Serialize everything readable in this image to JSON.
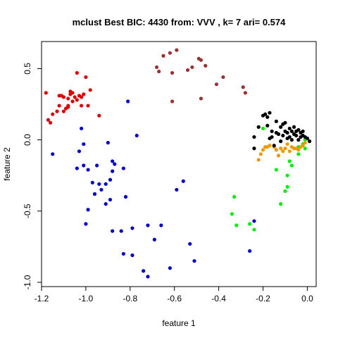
{
  "chart_data": {
    "type": "scatter",
    "title": "mclust Best BIC: 4430 from: VVV , k= 7 ari= 0.574",
    "xlabel": "feature 1",
    "ylabel": "feature 2",
    "xlim": [
      -1.2,
      0.04
    ],
    "ylim": [
      -1.03,
      0.69
    ],
    "xticks": [
      -1.2,
      -1.0,
      -0.8,
      -0.6,
      -0.4,
      -0.2,
      0.0
    ],
    "xtick_labels": [
      "-1.2",
      "-1.0",
      "-0.8",
      "-0.6",
      "-0.4",
      "-0.2",
      "0.0"
    ],
    "yticks": [
      -1.0,
      -0.5,
      0.0,
      0.5
    ],
    "ytick_labels": [
      "-1.0",
      "-0.5",
      "0.0",
      "0.5"
    ],
    "grid": false,
    "series": [
      {
        "color": "#dd0000",
        "points": [
          [
            -1.18,
            0.33
          ],
          [
            -1.17,
            0.14
          ],
          [
            -1.16,
            0.12
          ],
          [
            -1.15,
            0.18
          ],
          [
            -1.13,
            0.2
          ],
          [
            -1.12,
            0.24
          ],
          [
            -1.12,
            0.31
          ],
          [
            -1.11,
            0.31
          ],
          [
            -1.1,
            0.3
          ],
          [
            -1.1,
            0.2
          ],
          [
            -1.09,
            0.22
          ],
          [
            -1.08,
            0.24
          ],
          [
            -1.08,
            0.23
          ],
          [
            -1.08,
            0.29
          ],
          [
            -1.07,
            0.32
          ],
          [
            -1.07,
            0.34
          ],
          [
            -1.06,
            0.33
          ],
          [
            -1.06,
            0.27
          ],
          [
            -1.05,
            0.3
          ],
          [
            -1.04,
            0.28
          ],
          [
            -1.04,
            0.47
          ],
          [
            -1.03,
            0.31
          ],
          [
            -1.02,
            0.3
          ],
          [
            -1.02,
            0.24
          ],
          [
            -1.01,
            0.32
          ],
          [
            -1.0,
            0.44
          ],
          [
            -0.99,
            0.24
          ],
          [
            -0.98,
            0.35
          ],
          [
            -0.94,
            0.17
          ]
        ]
      },
      {
        "color": "#993333",
        "points": [
          [
            -0.68,
            0.51
          ],
          [
            -0.67,
            0.48
          ],
          [
            -0.65,
            0.59
          ],
          [
            -0.62,
            0.61
          ],
          [
            -0.61,
            0.47
          ],
          [
            -0.61,
            0.27
          ],
          [
            -0.59,
            0.63
          ],
          [
            -0.54,
            0.49
          ],
          [
            -0.52,
            0.51
          ],
          [
            -0.49,
            0.57
          ],
          [
            -0.48,
            0.56
          ],
          [
            -0.48,
            0.29
          ],
          [
            -0.46,
            0.52
          ],
          [
            -0.41,
            0.39
          ],
          [
            -0.38,
            0.44
          ],
          [
            -0.29,
            0.37
          ],
          [
            -0.28,
            0.33
          ]
        ]
      },
      {
        "color": "#0000cc",
        "points": [
          [
            -1.15,
            -0.1
          ],
          [
            -1.04,
            -0.2
          ],
          [
            -1.03,
            -0.08
          ],
          [
            -1.02,
            0.08
          ],
          [
            -1.01,
            -0.03
          ],
          [
            -1.01,
            -0.18
          ],
          [
            -1.0,
            -0.59
          ],
          [
            -0.99,
            -0.49
          ],
          [
            -0.99,
            -0.21
          ],
          [
            -0.97,
            -0.3
          ],
          [
            -0.96,
            -0.38
          ],
          [
            -0.95,
            -0.18
          ],
          [
            -0.94,
            -0.31
          ],
          [
            -0.93,
            -0.35
          ],
          [
            -0.91,
            -0.45
          ],
          [
            -0.91,
            -0.31
          ],
          [
            -0.9,
            -0.02
          ],
          [
            -0.89,
            -0.42
          ],
          [
            -0.89,
            -0.28
          ],
          [
            -0.88,
            -0.22
          ],
          [
            -0.88,
            -0.64
          ],
          [
            -0.88,
            -0.15
          ],
          [
            -0.87,
            -0.17
          ],
          [
            -0.84,
            -0.64
          ],
          [
            -0.83,
            -0.8
          ],
          [
            -0.83,
            -0.2
          ],
          [
            -0.82,
            -0.4
          ],
          [
            -0.81,
            0.27
          ],
          [
            -0.79,
            -0.81
          ],
          [
            -0.79,
            -0.62
          ],
          [
            -0.77,
            0.03
          ],
          [
            -0.74,
            -0.92
          ],
          [
            -0.72,
            -0.96
          ],
          [
            -0.72,
            -0.6
          ],
          [
            -0.69,
            -0.7
          ],
          [
            -0.66,
            -0.6
          ],
          [
            -0.62,
            -0.9
          ],
          [
            -0.59,
            -0.35
          ],
          [
            -0.56,
            -0.29
          ],
          [
            -0.53,
            -0.73
          ],
          [
            -0.51,
            -0.85
          ],
          [
            -0.26,
            -0.78
          ],
          [
            -0.24,
            -0.57
          ]
        ]
      },
      {
        "color": "#00ee00",
        "points": [
          [
            -0.34,
            -0.52
          ],
          [
            -0.33,
            -0.4
          ],
          [
            -0.32,
            -0.6
          ],
          [
            -0.26,
            -0.59
          ],
          [
            -0.24,
            -0.63
          ],
          [
            -0.2,
            0.08
          ],
          [
            -0.14,
            -0.21
          ],
          [
            -0.12,
            -0.45
          ],
          [
            -0.1,
            -0.36
          ],
          [
            -0.09,
            -0.33
          ],
          [
            -0.09,
            -0.25
          ],
          [
            -0.08,
            -0.15
          ],
          [
            -0.07,
            -0.18
          ],
          [
            -0.04,
            -0.1
          ],
          [
            -0.04,
            -0.05
          ],
          [
            -0.03,
            -0.05
          ],
          [
            -0.02,
            -0.03
          ],
          [
            -0.01,
            0.0
          ],
          [
            -0.01,
            -0.06
          ]
        ]
      },
      {
        "color": "#ee9900",
        "points": [
          [
            -0.22,
            -0.14
          ],
          [
            -0.21,
            -0.1
          ],
          [
            -0.2,
            -0.07
          ],
          [
            -0.19,
            -0.05
          ],
          [
            -0.18,
            -0.05
          ],
          [
            -0.17,
            -0.04
          ],
          [
            -0.15,
            -0.05
          ],
          [
            -0.14,
            -0.07
          ],
          [
            -0.13,
            -0.11
          ],
          [
            -0.12,
            -0.06
          ],
          [
            -0.11,
            -0.08
          ],
          [
            -0.1,
            -0.06
          ],
          [
            -0.09,
            -0.03
          ],
          [
            -0.08,
            -0.08
          ],
          [
            -0.07,
            -0.05
          ],
          [
            -0.06,
            -0.06
          ],
          [
            -0.05,
            -0.06
          ],
          [
            -0.04,
            -0.07
          ],
          [
            -0.03,
            -0.05
          ],
          [
            -0.02,
            -0.04
          ],
          [
            -0.01,
            -0.02
          ]
        ]
      },
      {
        "color": "#000000",
        "points": [
          [
            -0.24,
            -0.06
          ],
          [
            -0.24,
            0.02
          ],
          [
            -0.22,
            0.09
          ],
          [
            -0.2,
            0.17
          ],
          [
            -0.19,
            0.18
          ],
          [
            -0.18,
            0.1
          ],
          [
            -0.18,
            0.16
          ],
          [
            -0.17,
            0.19
          ],
          [
            -0.17,
            0.01
          ],
          [
            -0.16,
            0.06
          ],
          [
            -0.16,
            0.02
          ],
          [
            -0.15,
            -0.04
          ],
          [
            -0.14,
            0.05
          ],
          [
            -0.14,
            0.13
          ],
          [
            -0.13,
            0.04
          ],
          [
            -0.12,
            -0.01
          ],
          [
            -0.12,
            0.09
          ],
          [
            -0.11,
            0.11
          ],
          [
            -0.11,
            0.03
          ],
          [
            -0.1,
            0.06
          ],
          [
            -0.1,
            0.12
          ],
          [
            -0.09,
            0.01
          ],
          [
            -0.09,
            0.05
          ],
          [
            -0.08,
            0.08
          ],
          [
            -0.08,
            0.02
          ],
          [
            -0.07,
            0.0
          ],
          [
            -0.07,
            0.06
          ],
          [
            -0.06,
            0.04
          ],
          [
            -0.06,
            0.09
          ],
          [
            -0.05,
            0.03
          ],
          [
            -0.05,
            0.06
          ],
          [
            -0.04,
            0.07
          ],
          [
            -0.04,
            0.0
          ],
          [
            -0.03,
            0.05
          ],
          [
            -0.03,
            0.02
          ],
          [
            -0.02,
            0.06
          ],
          [
            -0.02,
            0.03
          ],
          [
            -0.01,
            0.02
          ],
          [
            0.0,
            0.01
          ],
          [
            0.01,
            -0.01
          ]
        ]
      }
    ]
  }
}
